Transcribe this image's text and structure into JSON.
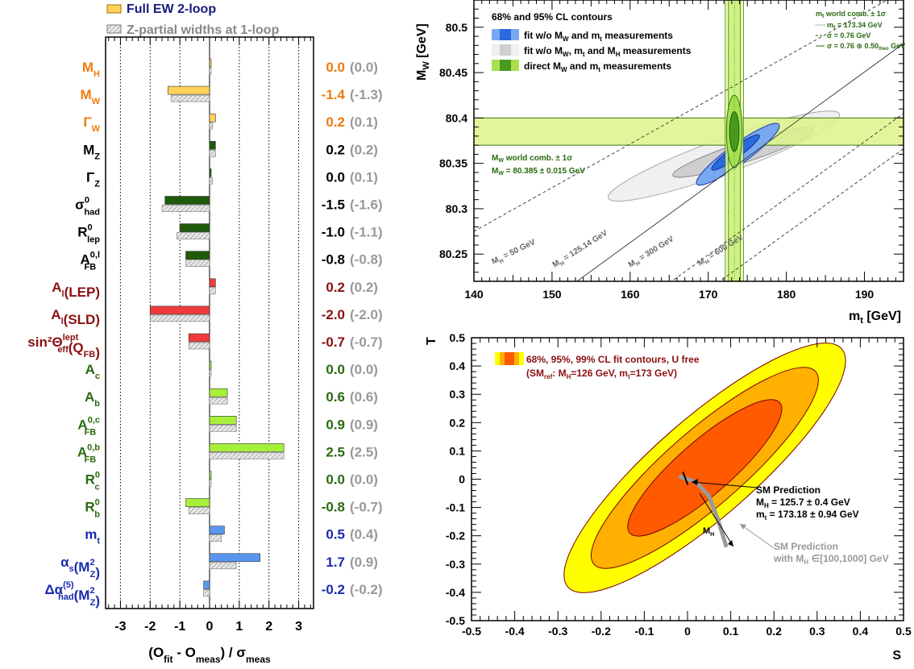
{
  "colors": {
    "orange": "#f07a10",
    "darkgreen": "#1a5c0a",
    "darkred": "#8a1010",
    "green": "#2a6a10",
    "blue": "#1a2ab0",
    "lightgreenbar": "#a6f03a",
    "darkgreenbar": "#1f5a0a",
    "redbar": "#ef3b3b",
    "bluebar": "#5a96ef",
    "yellowbar": "#ffd25a",
    "grey": "#888888",
    "ciYellow": "#ffff00",
    "ciOrange": "#ffb000",
    "ciRed": "#ff5a00"
  },
  "chart_data": [
    {
      "type": "bar",
      "legend": [
        "Full EW 2-loop",
        "Z-partial widths at 1-loop"
      ],
      "xlabel": "(O - O ) / σ",
      "xlim": [
        -3.5,
        3.5
      ],
      "xticks": [
        "-3",
        "-2",
        "-1",
        "0",
        "1",
        "2",
        "3"
      ],
      "observables": [
        {
          "label": "M",
          "sub": "H",
          "sup": "",
          "color": "orange",
          "full": 0.0,
          "zpw": 0.0,
          "pull": "0.0",
          "pull_zpw": "(0.0)"
        },
        {
          "label": "M",
          "sub": "W",
          "sup": "",
          "color": "orange",
          "full": -1.4,
          "zpw": -1.3,
          "pull": "-1.4",
          "pull_zpw": "(-1.3)"
        },
        {
          "label": "Γ",
          "sub": "W",
          "sup": "",
          "color": "orange",
          "full": 0.2,
          "zpw": 0.1,
          "pull": "0.2",
          "pull_zpw": "(0.1)"
        },
        {
          "label": "M",
          "sub": "Z",
          "sup": "",
          "color": "black",
          "full": 0.2,
          "zpw": 0.2,
          "pull": "0.2",
          "pull_zpw": "(0.2)"
        },
        {
          "label": "Γ",
          "sub": "Z",
          "sup": "",
          "color": "black",
          "full": 0.0,
          "zpw": 0.1,
          "pull": "0.0",
          "pull_zpw": "(0.1)"
        },
        {
          "label": "σ",
          "sub": "had",
          "sup": "0",
          "color": "black",
          "full": -1.5,
          "zpw": -1.6,
          "pull": "-1.5",
          "pull_zpw": "(-1.6)"
        },
        {
          "label": "R",
          "sub": "lep",
          "sup": "0",
          "color": "black",
          "full": -1.0,
          "zpw": -1.1,
          "pull": "-1.0",
          "pull_zpw": "(-1.1)"
        },
        {
          "label": "A",
          "sub": "FB",
          "sup": "0,l",
          "color": "black",
          "full": -0.8,
          "zpw": -0.8,
          "pull": "-0.8",
          "pull_zpw": "(-0.8)"
        },
        {
          "label": "A",
          "sub": "l",
          "sup": "",
          "suffix": "(LEP)",
          "color": "darkred",
          "full": 0.2,
          "zpw": 0.2,
          "pull": "0.2",
          "pull_zpw": "(0.2)"
        },
        {
          "label": "A",
          "sub": "l",
          "sup": "",
          "suffix": "(SLD)",
          "color": "darkred",
          "full": -2.0,
          "zpw": -2.0,
          "pull": "-2.0",
          "pull_zpw": "(-2.0)"
        },
        {
          "label": "sin²Θ",
          "sub": "eff",
          "sup": "lept",
          "suffix": "(Q",
          "suffix_sub": "FB",
          "suffix_end": ")",
          "color": "darkred",
          "full": -0.7,
          "zpw": -0.7,
          "pull": "-0.7",
          "pull_zpw": "(-0.7)"
        },
        {
          "label": "A",
          "sub": "c",
          "sup": "",
          "color": "green",
          "full": 0.0,
          "zpw": 0.0,
          "pull": "0.0",
          "pull_zpw": "(0.0)"
        },
        {
          "label": "A",
          "sub": "b",
          "sup": "",
          "color": "green",
          "full": 0.6,
          "zpw": 0.6,
          "pull": "0.6",
          "pull_zpw": "(0.6)"
        },
        {
          "label": "A",
          "sub": "FB",
          "sup": "0,c",
          "color": "green",
          "full": 0.9,
          "zpw": 0.9,
          "pull": "0.9",
          "pull_zpw": "(0.9)"
        },
        {
          "label": "A",
          "sub": "FB",
          "sup": "0,b",
          "color": "green",
          "full": 2.5,
          "zpw": 2.5,
          "pull": "2.5",
          "pull_zpw": "(2.5)"
        },
        {
          "label": "R",
          "sub": "c",
          "sup": "0",
          "color": "green",
          "full": 0.0,
          "zpw": 0.0,
          "pull": "0.0",
          "pull_zpw": "(0.0)"
        },
        {
          "label": "R",
          "sub": "b",
          "sup": "0",
          "color": "green",
          "full": -0.8,
          "zpw": -0.7,
          "pull": "-0.8",
          "pull_zpw": "(-0.7)"
        },
        {
          "label": "m",
          "sub": "t",
          "sup": "",
          "color": "blue",
          "full": 0.5,
          "zpw": 0.4,
          "pull": "0.5",
          "pull_zpw": "(0.4)"
        },
        {
          "label": "α",
          "sub": "s",
          "sup": "",
          "suffix": "(M",
          "suffix_sub": "Z",
          "suffix_sup": "2",
          "suffix_end": ")",
          "color": "blue",
          "full": 1.7,
          "zpw": 0.9,
          "pull": "1.7",
          "pull_zpw": "(0.9)"
        },
        {
          "label": "Δα",
          "sub": "had",
          "sup": "(5)",
          "suffix": "(M",
          "suffix_sub": "Z",
          "suffix_sup": "2",
          "suffix_end": ")",
          "color": "blue",
          "full": -0.2,
          "zpw": -0.2,
          "pull": "-0.2",
          "pull_zpw": "(-0.2)"
        }
      ]
    },
    {
      "type": "scatter",
      "xlabel": "m [GeV]",
      "ylabel": "M [GeV]",
      "xlim": [
        140,
        195
      ],
      "ylim": [
        80.22,
        80.53
      ],
      "xticks": [
        "140",
        "150",
        "160",
        "170",
        "180",
        "190"
      ],
      "yticks": [
        "80.25",
        "80.3",
        "80.35",
        "80.4",
        "80.45",
        "80.5"
      ],
      "legend": [
        "68% and 95% CL contours",
        "fit w/o M and m measurements",
        "fit w/o M, m and M measurements",
        "direct M and m measurements"
      ],
      "mt_band": {
        "label": "m world comb. ± 1σ",
        "center": 173.34,
        "err": 0.76,
        "text": "m = 173.34 GeV",
        "sigma_text": "σ = 0.76 GeV",
        "sigma_theo_text": "σ = 0.76 ⊕ 0.50 GeV"
      },
      "mw_band": {
        "label": "M world comb. ± 1σ",
        "center": 80.385,
        "err": 0.015,
        "text": "M = 80.385 ± 0.015 GeV"
      },
      "mh_lines": [
        "M = 50 GeV",
        "M = 125.14 GeV",
        "M = 300 GeV",
        "M = 600 GeV"
      ],
      "mh_line_points": [
        [
          [
            140,
            80.275
          ],
          [
            195,
            80.54
          ]
        ],
        [
          [
            150,
            80.2
          ],
          [
            195,
            80.482
          ]
        ],
        [
          [
            165,
            80.218
          ],
          [
            195,
            80.405
          ]
        ],
        [
          [
            170,
            80.211
          ],
          [
            195,
            80.366
          ]
        ]
      ],
      "contours": [
        {
          "name": "fit w/o M_W, m_t and M_H 95%",
          "cx": 172,
          "cy": 80.358,
          "rx": 31.5,
          "ry": 0.019,
          "angle_deg": 20
        },
        {
          "name": "fit w/o M_W, m_t and M_H 68%",
          "cx": 174.5,
          "cy": 80.362,
          "rx": 19,
          "ry": 0.011,
          "angle_deg": 18
        },
        {
          "name": "fit w/o M_W and m_t 95%",
          "cx": 173.8,
          "cy": 80.36,
          "rx": 13,
          "ry": 0.011,
          "angle_deg": 36
        },
        {
          "name": "fit w/o M_W and m_t 68%",
          "cx": 173.5,
          "cy": 80.362,
          "rx": 7.5,
          "ry": 0.006,
          "angle_deg": 36
        },
        {
          "name": "direct 95%",
          "cx": 173.34,
          "cy": 80.385,
          "rx": 2.0,
          "ry": 0.04,
          "angle_deg": 0
        },
        {
          "name": "direct 68%",
          "cx": 173.34,
          "cy": 80.385,
          "rx": 1.2,
          "ry": 0.022,
          "angle_deg": 0
        }
      ]
    },
    {
      "type": "scatter",
      "xlabel": "S",
      "ylabel": "T",
      "xlim": [
        -0.5,
        0.5
      ],
      "ylim": [
        -0.5,
        0.5
      ],
      "xticks": [
        "-0.5",
        "-0.4",
        "-0.3",
        "-0.2",
        "-0.1",
        "0",
        "0.1",
        "0.2",
        "0.3",
        "0.4",
        "0.5"
      ],
      "yticks": [
        "-0.5",
        "-0.4",
        "-0.3",
        "-0.2",
        "-0.1",
        "0",
        "0.1",
        "0.2",
        "0.3",
        "0.4",
        "0.5"
      ],
      "legend": [
        "68%, 95%, 99% CL fit contours, U free",
        "(SM : M =126 GeV, m =173 GeV)"
      ],
      "contours": [
        {
          "name": "99%",
          "cx": 0.04,
          "cy": 0.04,
          "rx": 0.42,
          "ry": 0.115,
          "angle_deg": 41
        },
        {
          "name": "95%",
          "cx": 0.04,
          "cy": 0.04,
          "rx": 0.34,
          "ry": 0.088,
          "angle_deg": 41
        },
        {
          "name": "68%",
          "cx": 0.04,
          "cy": 0.04,
          "rx": 0.23,
          "ry": 0.062,
          "angle_deg": 41
        }
      ],
      "sm_prediction": {
        "label": "SM Prediction",
        "mh": "M = 125.7 ± 0.4 GeV",
        "mt": "m = 173.18 ± 0.94 GeV",
        "point": [
          -0.005,
          0.003
        ]
      },
      "sm_band": {
        "label": "SM Prediction",
        "range": "with M ∈[100,1000] GeV",
        "arrow_label": "M",
        "points": [
          [
            -0.02,
            0.01
          ],
          [
            0.02,
            -0.01
          ],
          [
            0.05,
            -0.06
          ],
          [
            0.07,
            -0.14
          ],
          [
            0.09,
            -0.24
          ]
        ]
      }
    }
  ]
}
